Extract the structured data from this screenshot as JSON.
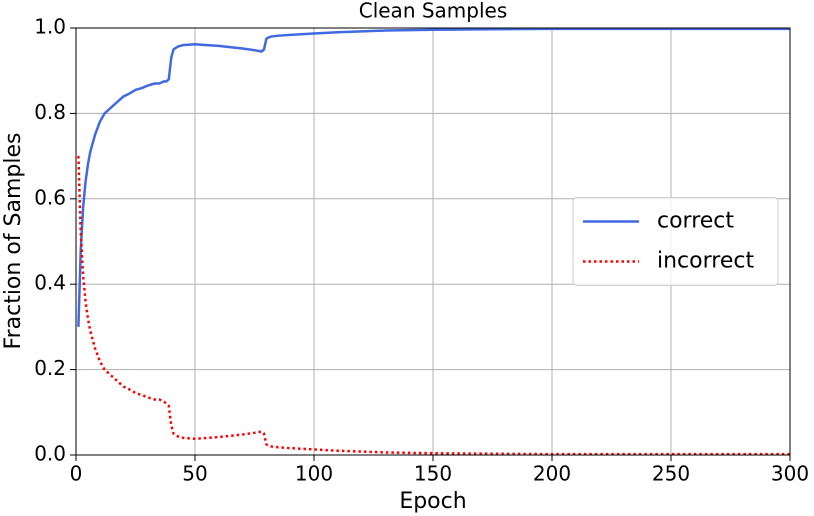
{
  "chart_data": {
    "type": "line",
    "title": "Clean Samples",
    "xlabel": "Epoch",
    "ylabel": "Fraction of Samples",
    "x": [
      1,
      2,
      3,
      4,
      5,
      6,
      7,
      8,
      10,
      12,
      14,
      16,
      18,
      20,
      22,
      25,
      28,
      30,
      33,
      35,
      37,
      38,
      39,
      40,
      41,
      43,
      45,
      50,
      55,
      60,
      65,
      70,
      75,
      78,
      79,
      80,
      81,
      82,
      85,
      90,
      100,
      110,
      120,
      130,
      150,
      175,
      200,
      250,
      300
    ],
    "series": [
      {
        "name": "correct",
        "color": "#4169e1",
        "linestyle": "solid",
        "values": [
          0.3,
          0.48,
          0.58,
          0.64,
          0.68,
          0.71,
          0.73,
          0.75,
          0.78,
          0.8,
          0.81,
          0.82,
          0.83,
          0.84,
          0.845,
          0.855,
          0.86,
          0.865,
          0.87,
          0.87,
          0.875,
          0.875,
          0.88,
          0.93,
          0.95,
          0.957,
          0.96,
          0.962,
          0.96,
          0.958,
          0.955,
          0.952,
          0.948,
          0.945,
          0.95,
          0.975,
          0.978,
          0.98,
          0.982,
          0.984,
          0.987,
          0.99,
          0.992,
          0.994,
          0.996,
          0.997,
          0.998,
          0.998,
          0.998
        ]
      },
      {
        "name": "incorrect",
        "color": "#ff0000",
        "linestyle": "dotted",
        "values": [
          0.7,
          0.52,
          0.42,
          0.36,
          0.32,
          0.29,
          0.27,
          0.25,
          0.22,
          0.2,
          0.19,
          0.18,
          0.17,
          0.16,
          0.155,
          0.145,
          0.14,
          0.135,
          0.13,
          0.13,
          0.125,
          0.12,
          0.115,
          0.07,
          0.05,
          0.043,
          0.04,
          0.038,
          0.04,
          0.042,
          0.045,
          0.048,
          0.052,
          0.055,
          0.05,
          0.025,
          0.022,
          0.02,
          0.018,
          0.016,
          0.013,
          0.01,
          0.008,
          0.006,
          0.004,
          0.003,
          0.002,
          0.002,
          0.002
        ]
      }
    ],
    "xlim": [
      0,
      300
    ],
    "xticks": [
      0,
      50,
      100,
      150,
      200,
      250,
      300
    ],
    "ylim": [
      0,
      1
    ],
    "yticks": [
      {
        "value": 0,
        "label": "0.0"
      },
      0.2,
      0.4,
      0.6,
      0.8,
      {
        "value": 1,
        "label": "1.0"
      }
    ],
    "grid": true,
    "legend": "center right"
  }
}
